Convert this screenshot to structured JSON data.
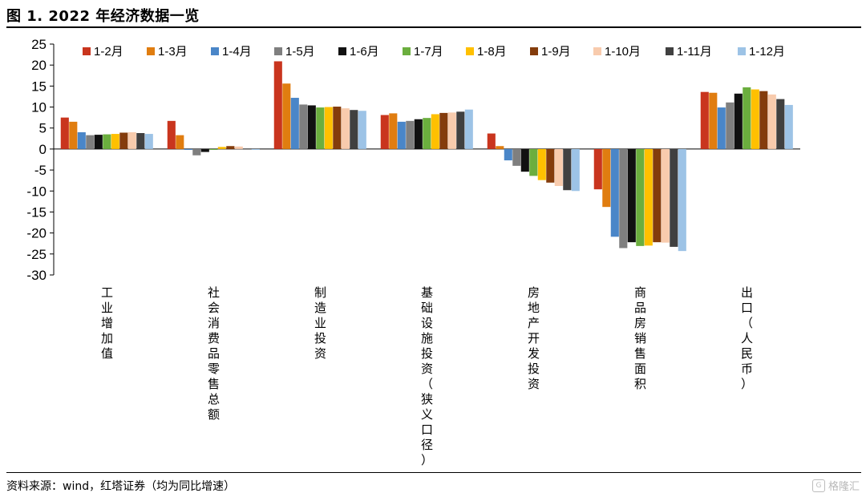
{
  "header": {
    "title": "图 1. 2022 年经济数据一览"
  },
  "footer": {
    "source": "资料来源：wind，红塔证券（均为同比增速）",
    "watermark": "格隆汇"
  },
  "chart_data": {
    "type": "bar",
    "title": "",
    "xlabel": "",
    "ylabel": "",
    "ylim": [
      -30,
      25
    ],
    "yticks": [
      25,
      20,
      15,
      10,
      5,
      0,
      -5,
      -10,
      -15,
      -20,
      -25,
      -30
    ],
    "grid": false,
    "legend_position": "top",
    "categories": [
      "工业增加值",
      "社会消费品零售总额",
      "制造业投资",
      "基础设施投资（狭义口径）",
      "房地产开发投资",
      "商品房销售面积",
      "出口（人民币）"
    ],
    "series": [
      {
        "name": "1-2月",
        "color": "#C9351E",
        "values": [
          7.5,
          6.7,
          20.9,
          8.1,
          3.7,
          -9.6,
          13.6
        ]
      },
      {
        "name": "1-3月",
        "color": "#E07D10",
        "values": [
          6.5,
          3.3,
          15.6,
          8.5,
          0.7,
          -13.8,
          13.4
        ]
      },
      {
        "name": "1-4月",
        "color": "#4A86C8",
        "values": [
          4.0,
          -0.2,
          12.2,
          6.5,
          -2.7,
          -20.9,
          9.9
        ]
      },
      {
        "name": "1-5月",
        "color": "#7F7F7F",
        "values": [
          3.3,
          -1.5,
          10.6,
          6.7,
          -4.0,
          -23.6,
          11.1
        ]
      },
      {
        "name": "1-6月",
        "color": "#111111",
        "values": [
          3.4,
          -0.7,
          10.4,
          7.1,
          -5.4,
          -22.2,
          13.2
        ]
      },
      {
        "name": "1-7月",
        "color": "#6BAE3E",
        "values": [
          3.5,
          -0.2,
          9.9,
          7.4,
          -6.4,
          -23.1,
          14.7
        ]
      },
      {
        "name": "1-8月",
        "color": "#FFC000",
        "values": [
          3.6,
          0.5,
          10.0,
          8.3,
          -7.4,
          -23.0,
          14.2
        ]
      },
      {
        "name": "1-9月",
        "color": "#843C0C",
        "values": [
          3.9,
          0.7,
          10.1,
          8.6,
          -8.0,
          -22.2,
          13.8
        ]
      },
      {
        "name": "1-10月",
        "color": "#F8CBAD",
        "values": [
          4.0,
          0.6,
          9.7,
          8.7,
          -8.8,
          -22.3,
          13.0
        ]
      },
      {
        "name": "1-11月",
        "color": "#404040",
        "values": [
          3.8,
          -0.1,
          9.3,
          8.9,
          -9.8,
          -23.3,
          11.9
        ]
      },
      {
        "name": "1-12月",
        "color": "#9DC3E6",
        "values": [
          3.6,
          -0.2,
          9.1,
          9.4,
          -10.0,
          -24.3,
          10.5
        ]
      }
    ]
  }
}
